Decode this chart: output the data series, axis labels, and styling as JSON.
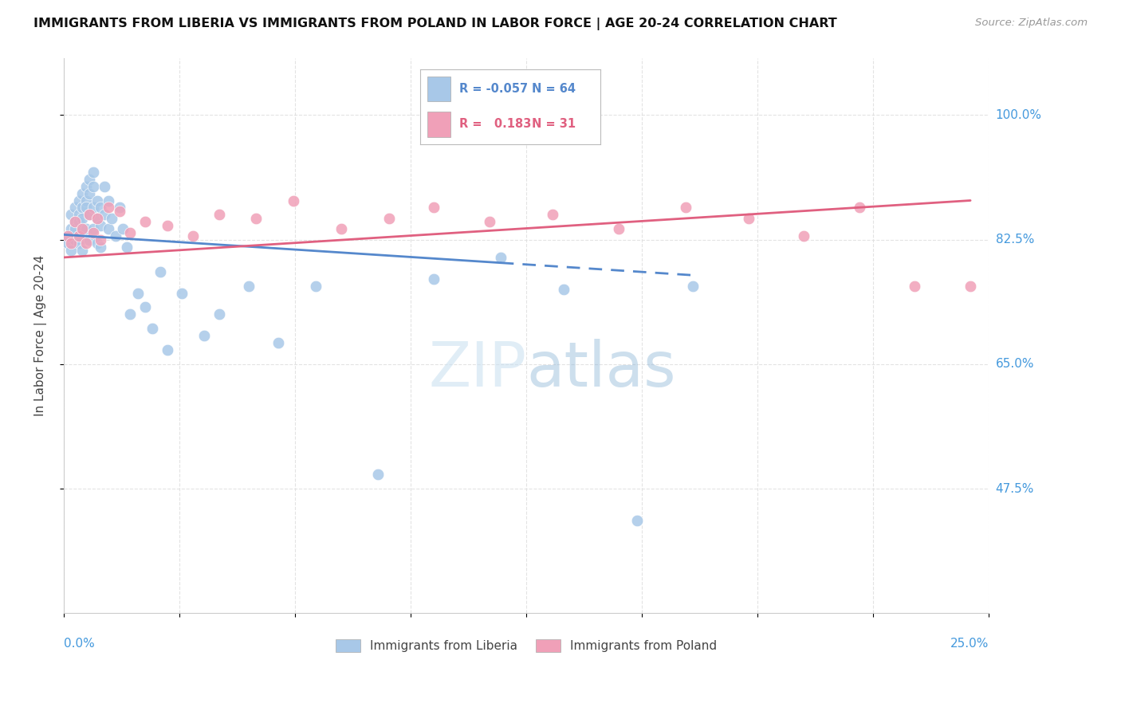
{
  "title": "IMMIGRANTS FROM LIBERIA VS IMMIGRANTS FROM POLAND IN LABOR FORCE | AGE 20-24 CORRELATION CHART",
  "source": "Source: ZipAtlas.com",
  "ylabel": "In Labor Force | Age 20-24",
  "xlim": [
    0.0,
    0.25
  ],
  "ylim": [
    0.3,
    1.08
  ],
  "r_liberia": -0.057,
  "n_liberia": 64,
  "r_poland": 0.183,
  "n_poland": 31,
  "color_liberia": "#a8c8e8",
  "color_poland": "#f0a0b8",
  "color_liberia_line": "#5588cc",
  "color_poland_line": "#e06080",
  "color_axis_labels": "#4499dd",
  "color_grid": "#dddddd",
  "liberia_x": [
    0.001,
    0.001,
    0.002,
    0.002,
    0.002,
    0.003,
    0.003,
    0.003,
    0.003,
    0.004,
    0.004,
    0.004,
    0.004,
    0.004,
    0.005,
    0.005,
    0.005,
    0.005,
    0.005,
    0.006,
    0.006,
    0.006,
    0.006,
    0.007,
    0.007,
    0.007,
    0.007,
    0.008,
    0.008,
    0.008,
    0.008,
    0.009,
    0.009,
    0.009,
    0.01,
    0.01,
    0.01,
    0.011,
    0.011,
    0.012,
    0.012,
    0.013,
    0.014,
    0.015,
    0.016,
    0.017,
    0.018,
    0.02,
    0.022,
    0.024,
    0.026,
    0.028,
    0.032,
    0.038,
    0.042,
    0.05,
    0.058,
    0.068,
    0.085,
    0.1,
    0.118,
    0.135,
    0.155,
    0.17
  ],
  "liberia_y": [
    0.83,
    0.82,
    0.84,
    0.81,
    0.86,
    0.85,
    0.84,
    0.87,
    0.825,
    0.88,
    0.86,
    0.85,
    0.83,
    0.82,
    0.89,
    0.87,
    0.855,
    0.84,
    0.81,
    0.9,
    0.88,
    0.87,
    0.84,
    0.91,
    0.89,
    0.86,
    0.825,
    0.92,
    0.9,
    0.87,
    0.84,
    0.88,
    0.855,
    0.82,
    0.87,
    0.845,
    0.815,
    0.9,
    0.86,
    0.88,
    0.84,
    0.855,
    0.83,
    0.87,
    0.84,
    0.815,
    0.72,
    0.75,
    0.73,
    0.7,
    0.78,
    0.67,
    0.75,
    0.69,
    0.72,
    0.76,
    0.68,
    0.76,
    0.495,
    0.77,
    0.8,
    0.755,
    0.43,
    0.76
  ],
  "poland_x": [
    0.001,
    0.002,
    0.003,
    0.004,
    0.005,
    0.006,
    0.007,
    0.008,
    0.009,
    0.01,
    0.012,
    0.015,
    0.018,
    0.022,
    0.028,
    0.035,
    0.042,
    0.052,
    0.062,
    0.075,
    0.088,
    0.1,
    0.115,
    0.132,
    0.15,
    0.168,
    0.185,
    0.2,
    0.215,
    0.23,
    0.245
  ],
  "poland_y": [
    0.83,
    0.82,
    0.85,
    0.83,
    0.84,
    0.82,
    0.86,
    0.835,
    0.855,
    0.825,
    0.87,
    0.865,
    0.835,
    0.85,
    0.845,
    0.83,
    0.86,
    0.855,
    0.88,
    0.84,
    0.855,
    0.87,
    0.85,
    0.86,
    0.84,
    0.87,
    0.855,
    0.83,
    0.87,
    0.76,
    0.76
  ],
  "trend_lib_x0": 0.0,
  "trend_lib_y0": 0.832,
  "trend_lib_x1": 0.17,
  "trend_lib_y1": 0.775,
  "trend_lib_dash_start": 0.118,
  "trend_pol_x0": 0.0,
  "trend_pol_y0": 0.8,
  "trend_pol_x1": 0.245,
  "trend_pol_y1": 0.88,
  "ytick_vals": [
    0.475,
    0.65,
    0.825,
    1.0
  ],
  "ytick_labels": [
    "47.5%",
    "65.0%",
    "82.5%",
    "100.0%"
  ]
}
